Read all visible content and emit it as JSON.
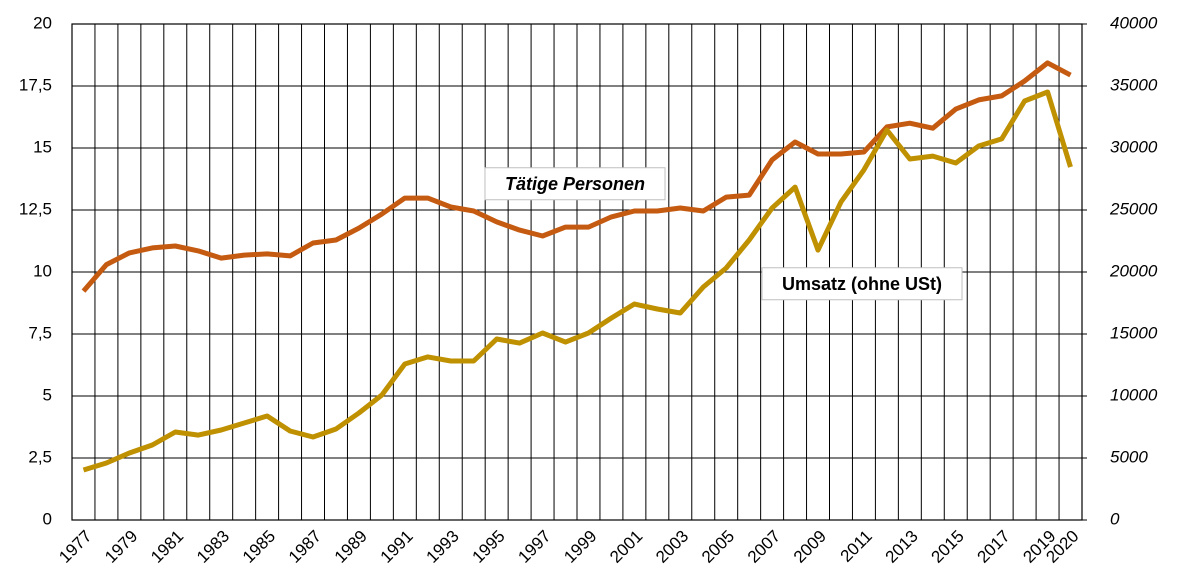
{
  "chart_data": {
    "type": "line",
    "categories": [
      "1977",
      null,
      "1979",
      null,
      "1981",
      null,
      "1983",
      null,
      "1985",
      null,
      "1987",
      null,
      "1989",
      null,
      "1991",
      null,
      "1993",
      null,
      "1995",
      null,
      "1997",
      null,
      "1999",
      null,
      "2001",
      null,
      "2003",
      null,
      "2005",
      null,
      "2007",
      null,
      "2009",
      null,
      "2011",
      null,
      "2013",
      null,
      "2015",
      null,
      "2017",
      null,
      "2019",
      "2020"
    ],
    "series": [
      {
        "name": "Tätige Personen",
        "color": "#c55a11",
        "values": [
          9.23,
          10.3,
          10.77,
          10.97,
          11.05,
          10.85,
          10.56,
          10.68,
          10.73,
          10.65,
          11.17,
          11.29,
          11.77,
          12.34,
          12.98,
          12.98,
          12.62,
          12.46,
          12.02,
          11.69,
          11.45,
          11.81,
          11.81,
          12.22,
          12.46,
          12.46,
          12.58,
          12.46,
          13.02,
          13.1,
          14.52,
          15.24,
          14.76,
          14.76,
          14.84,
          15.85,
          16.0,
          15.8,
          16.57,
          16.94,
          17.1,
          17.7,
          18.43,
          17.94
        ]
      },
      {
        "name": "Umsatz (ohne USt)",
        "color": "#bf9000",
        "axis": "y2",
        "values": [
          4030,
          4600,
          5400,
          6050,
          7100,
          6850,
          7260,
          7820,
          8390,
          7180,
          6690,
          7340,
          8630,
          10080,
          12580,
          13150,
          12820,
          12820,
          14600,
          14270,
          15080,
          14350,
          15080,
          16290,
          17420,
          17020,
          16690,
          18790,
          20320,
          22580,
          25160,
          26850,
          21770,
          25650,
          28230,
          31450,
          29110,
          29350,
          28790,
          30160,
          30730,
          33790,
          34520,
          28470
        ]
      }
    ],
    "ylim": [
      0,
      20
    ],
    "yticks": [
      0,
      {
        "value": 2.5,
        "label": "2,5"
      },
      5,
      {
        "value": 7.5,
        "label": "7,5"
      },
      10,
      {
        "value": 12.5,
        "label": "12,5"
      },
      15,
      {
        "value": 17.5,
        "label": "17,5"
      },
      20
    ],
    "y2lim": [
      0,
      40000
    ],
    "y2ticks": [
      0,
      5000,
      10000,
      15000,
      20000,
      25000,
      30000,
      35000,
      40000
    ],
    "grid": true
  }
}
